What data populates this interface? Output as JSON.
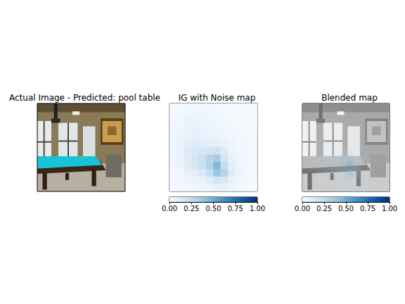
{
  "chart_data": [
    {
      "type": "image",
      "title": "Actual Image - Predicted: pool table",
      "tick_labels": false
    },
    {
      "type": "heatmap",
      "title": "IG with Noise map",
      "tick_labels": false,
      "cells": [
        [
          0.02,
          0.02,
          0.03,
          0.03,
          0.04,
          0.03,
          0.02,
          0.02,
          0.01,
          0.01,
          0.01,
          0.01
        ],
        [
          0.02,
          0.03,
          0.04,
          0.05,
          0.05,
          0.04,
          0.03,
          0.02,
          0.02,
          0.01,
          0.01,
          0.01
        ],
        [
          0.03,
          0.04,
          0.06,
          0.07,
          0.06,
          0.05,
          0.04,
          0.03,
          0.02,
          0.02,
          0.01,
          0.01
        ],
        [
          0.03,
          0.05,
          0.07,
          0.08,
          0.07,
          0.06,
          0.05,
          0.04,
          0.03,
          0.02,
          0.02,
          0.01
        ],
        [
          0.04,
          0.06,
          0.08,
          0.09,
          0.08,
          0.07,
          0.06,
          0.05,
          0.04,
          0.03,
          0.02,
          0.02
        ],
        [
          0.04,
          0.07,
          0.1,
          0.12,
          0.11,
          0.1,
          0.09,
          0.07,
          0.05,
          0.03,
          0.02,
          0.02
        ],
        [
          0.05,
          0.08,
          0.12,
          0.15,
          0.16,
          0.18,
          0.2,
          0.12,
          0.06,
          0.04,
          0.03,
          0.02
        ],
        [
          0.04,
          0.08,
          0.13,
          0.18,
          0.22,
          0.3,
          0.35,
          0.18,
          0.08,
          0.04,
          0.03,
          0.02
        ],
        [
          0.03,
          0.06,
          0.12,
          0.16,
          0.2,
          0.32,
          0.45,
          0.25,
          0.1,
          0.05,
          0.03,
          0.02
        ],
        [
          0.02,
          0.04,
          0.08,
          0.1,
          0.14,
          0.22,
          0.38,
          0.3,
          0.12,
          0.06,
          0.03,
          0.02
        ],
        [
          0.02,
          0.03,
          0.05,
          0.06,
          0.08,
          0.12,
          0.18,
          0.15,
          0.08,
          0.04,
          0.02,
          0.01
        ],
        [
          0.01,
          0.02,
          0.03,
          0.04,
          0.05,
          0.06,
          0.08,
          0.07,
          0.05,
          0.03,
          0.02,
          0.01
        ]
      ],
      "colorbar_range": [
        0,
        1
      ],
      "colorbar_ticks": [
        {
          "value": 0,
          "label": "0.00"
        },
        {
          "value": 0.25,
          "label": "0.25"
        },
        {
          "value": 0.5,
          "label": "0.50"
        },
        {
          "value": 0.75,
          "label": "0.75"
        },
        {
          "value": 1,
          "label": "1.00"
        }
      ]
    },
    {
      "type": "heatmap_overlay",
      "title": "Blended map",
      "tick_labels": false,
      "cells": [
        [
          0.02,
          0.02,
          0.03,
          0.03,
          0.04,
          0.03,
          0.02,
          0.02,
          0.01,
          0.01,
          0.01,
          0.01
        ],
        [
          0.02,
          0.03,
          0.04,
          0.05,
          0.05,
          0.04,
          0.03,
          0.02,
          0.02,
          0.01,
          0.01,
          0.01
        ],
        [
          0.03,
          0.04,
          0.06,
          0.07,
          0.06,
          0.05,
          0.04,
          0.03,
          0.02,
          0.02,
          0.01,
          0.01
        ],
        [
          0.03,
          0.05,
          0.07,
          0.08,
          0.07,
          0.06,
          0.05,
          0.04,
          0.03,
          0.02,
          0.02,
          0.01
        ],
        [
          0.04,
          0.06,
          0.08,
          0.09,
          0.08,
          0.07,
          0.06,
          0.05,
          0.04,
          0.03,
          0.02,
          0.02
        ],
        [
          0.04,
          0.07,
          0.1,
          0.12,
          0.11,
          0.1,
          0.09,
          0.07,
          0.05,
          0.03,
          0.02,
          0.02
        ],
        [
          0.05,
          0.08,
          0.12,
          0.15,
          0.16,
          0.18,
          0.2,
          0.12,
          0.06,
          0.04,
          0.03,
          0.02
        ],
        [
          0.04,
          0.08,
          0.13,
          0.18,
          0.22,
          0.3,
          0.35,
          0.18,
          0.08,
          0.04,
          0.03,
          0.02
        ],
        [
          0.03,
          0.06,
          0.12,
          0.16,
          0.2,
          0.32,
          0.45,
          0.25,
          0.1,
          0.05,
          0.03,
          0.02
        ],
        [
          0.02,
          0.04,
          0.08,
          0.1,
          0.14,
          0.22,
          0.38,
          0.3,
          0.12,
          0.06,
          0.03,
          0.02
        ],
        [
          0.02,
          0.03,
          0.05,
          0.06,
          0.08,
          0.12,
          0.18,
          0.15,
          0.08,
          0.04,
          0.02,
          0.01
        ],
        [
          0.01,
          0.02,
          0.03,
          0.04,
          0.05,
          0.06,
          0.08,
          0.07,
          0.05,
          0.03,
          0.02,
          0.01
        ]
      ],
      "colorbar_range": [
        0,
        1
      ],
      "colorbar_ticks": [
        {
          "value": 0,
          "label": "0.00"
        },
        {
          "value": 0.25,
          "label": "0.25"
        },
        {
          "value": 0.5,
          "label": "0.50"
        },
        {
          "value": 0.75,
          "label": "0.75"
        },
        {
          "value": 1,
          "label": "1.00"
        }
      ]
    }
  ]
}
